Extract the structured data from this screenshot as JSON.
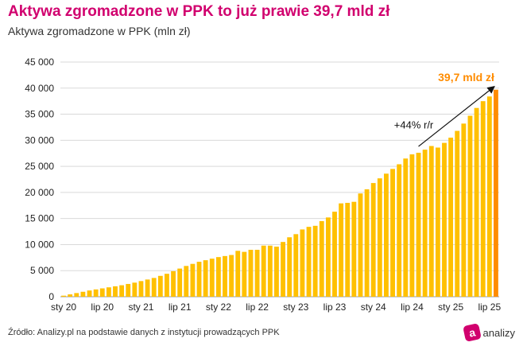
{
  "header": {
    "title": "Aktywa zgromadzone w PPK to już prawie 39,7 mld zł",
    "subtitle": "Aktywa zgromadzone w PPK (mln zł)"
  },
  "footer": {
    "source": "Źródło: Analizy.pl na podstawie danych z instytucji prowadzących PPK",
    "logo_text": "analizy",
    "logo_badge": "a",
    "logo_icon": "analizy-logo-icon"
  },
  "colors": {
    "title": "#d1006e",
    "bar": "#ffc000",
    "bar_highlight": "#ff8c00",
    "highlight_label": "#ff8c00"
  },
  "chart_data": {
    "type": "bar",
    "title": "Aktywa zgromadzone w PPK (mln zł)",
    "ylim": [
      0,
      45000
    ],
    "yticks": [
      "0",
      "5 000",
      "10 000",
      "15 000",
      "20 000",
      "25 000",
      "30 000",
      "35 000",
      "40 000",
      "45 000"
    ],
    "xtick_labels": [
      {
        "label": "sty 20",
        "index": 0
      },
      {
        "label": "lip 20",
        "index": 6
      },
      {
        "label": "sty 21",
        "index": 12
      },
      {
        "label": "lip 21",
        "index": 18
      },
      {
        "label": "sty 22",
        "index": 24
      },
      {
        "label": "lip 22",
        "index": 30
      },
      {
        "label": "sty 23",
        "index": 36
      },
      {
        "label": "lip 23",
        "index": 42
      },
      {
        "label": "sty 24",
        "index": 48
      },
      {
        "label": "lip 24",
        "index": 54
      },
      {
        "label": "sty 25",
        "index": 60
      },
      {
        "label": "lip 25",
        "index": 66
      }
    ],
    "values": [
      200,
      450,
      700,
      950,
      1200,
      1400,
      1600,
      1800,
      2000,
      2200,
      2450,
      2700,
      3000,
      3300,
      3600,
      4000,
      4400,
      4900,
      5400,
      5900,
      6300,
      6700,
      7000,
      7300,
      7600,
      7800,
      8000,
      8800,
      8600,
      9000,
      9000,
      9800,
      9800,
      9600,
      10500,
      11400,
      12000,
      12900,
      13400,
      13600,
      14500,
      15200,
      16300,
      17900,
      18000,
      18200,
      19800,
      20600,
      21800,
      22700,
      23600,
      24500,
      25400,
      26500,
      27300,
      27600,
      28200,
      28900,
      28600,
      29500,
      30500,
      31800,
      33200,
      34700,
      36200,
      37500,
      38400,
      39700
    ],
    "highlight_index": 67,
    "highlight_label": "39,7 mld zł",
    "annotation": "+44% r/r"
  }
}
